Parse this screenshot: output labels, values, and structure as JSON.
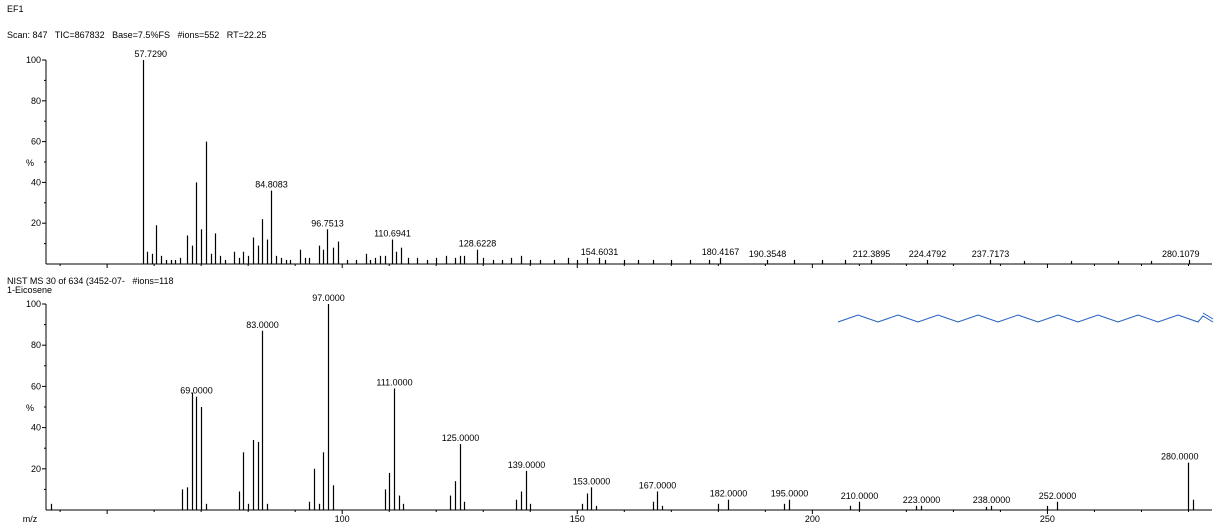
{
  "header": {
    "title": "EF1",
    "scan_info": "Scan: 847   TIC=867832   Base=7.5%FS   #ions=552   RT=22.25"
  },
  "library": {
    "info": "NIST MS 30 of 634 (3452-07-   #ions=118",
    "compound": "1-Eicosene"
  },
  "colors": {
    "axis": "#000000",
    "bars": "#000000",
    "structure": "#1f5fbf"
  },
  "chart_data": [
    {
      "type": "bar",
      "name": "measured",
      "xlim": [
        37,
        285
      ],
      "ylim": [
        0,
        100
      ],
      "y_ticks": [
        "20",
        "40",
        "60",
        "80",
        "100"
      ],
      "y_unit": "%",
      "peaks": [
        {
          "x": 57.73,
          "y": 100,
          "label": "57.7290"
        },
        {
          "x": 58.5,
          "y": 6
        },
        {
          "x": 59.5,
          "y": 5
        },
        {
          "x": 60.5,
          "y": 19
        },
        {
          "x": 61.5,
          "y": 4
        },
        {
          "x": 62.5,
          "y": 2
        },
        {
          "x": 63.5,
          "y": 2
        },
        {
          "x": 64.5,
          "y": 2
        },
        {
          "x": 65.5,
          "y": 3
        },
        {
          "x": 67,
          "y": 14
        },
        {
          "x": 68,
          "y": 9
        },
        {
          "x": 69,
          "y": 40
        },
        {
          "x": 70,
          "y": 17
        },
        {
          "x": 71,
          "y": 60
        },
        {
          "x": 72,
          "y": 5
        },
        {
          "x": 73,
          "y": 15
        },
        {
          "x": 74,
          "y": 4
        },
        {
          "x": 75,
          "y": 2
        },
        {
          "x": 77,
          "y": 6
        },
        {
          "x": 78,
          "y": 3
        },
        {
          "x": 79,
          "y": 6
        },
        {
          "x": 80,
          "y": 4
        },
        {
          "x": 81,
          "y": 13
        },
        {
          "x": 82,
          "y": 9
        },
        {
          "x": 83,
          "y": 22
        },
        {
          "x": 84,
          "y": 12
        },
        {
          "x": 84.81,
          "y": 36,
          "label": "84.8083"
        },
        {
          "x": 86,
          "y": 4
        },
        {
          "x": 87,
          "y": 3
        },
        {
          "x": 88,
          "y": 2
        },
        {
          "x": 89,
          "y": 2
        },
        {
          "x": 91,
          "y": 7
        },
        {
          "x": 92,
          "y": 3
        },
        {
          "x": 93,
          "y": 3
        },
        {
          "x": 95,
          "y": 9
        },
        {
          "x": 96,
          "y": 7
        },
        {
          "x": 96.75,
          "y": 17,
          "label": "96.7513"
        },
        {
          "x": 98,
          "y": 8
        },
        {
          "x": 99,
          "y": 11
        },
        {
          "x": 101,
          "y": 2
        },
        {
          "x": 103,
          "y": 2
        },
        {
          "x": 105,
          "y": 5
        },
        {
          "x": 106,
          "y": 2
        },
        {
          "x": 107,
          "y": 3
        },
        {
          "x": 108,
          "y": 4
        },
        {
          "x": 109,
          "y": 4
        },
        {
          "x": 110.69,
          "y": 12,
          "label": "110.6941"
        },
        {
          "x": 111.5,
          "y": 6
        },
        {
          "x": 112.5,
          "y": 8
        },
        {
          "x": 114,
          "y": 3
        },
        {
          "x": 116,
          "y": 3
        },
        {
          "x": 118,
          "y": 2
        },
        {
          "x": 120,
          "y": 3
        },
        {
          "x": 122,
          "y": 4
        },
        {
          "x": 124,
          "y": 3
        },
        {
          "x": 125,
          "y": 4
        },
        {
          "x": 126,
          "y": 4
        },
        {
          "x": 128.62,
          "y": 7,
          "label": "128.6228"
        },
        {
          "x": 130,
          "y": 3
        },
        {
          "x": 132,
          "y": 2
        },
        {
          "x": 134,
          "y": 2
        },
        {
          "x": 136,
          "y": 3
        },
        {
          "x": 138,
          "y": 4
        },
        {
          "x": 140,
          "y": 2
        },
        {
          "x": 142,
          "y": 2
        },
        {
          "x": 145,
          "y": 2
        },
        {
          "x": 148,
          "y": 3
        },
        {
          "x": 150,
          "y": 2
        },
        {
          "x": 152,
          "y": 3
        },
        {
          "x": 154.6,
          "y": 3,
          "label": "154.6031"
        },
        {
          "x": 156,
          "y": 2
        },
        {
          "x": 160,
          "y": 2
        },
        {
          "x": 163,
          "y": 2
        },
        {
          "x": 166,
          "y": 2
        },
        {
          "x": 170,
          "y": 2
        },
        {
          "x": 174,
          "y": 2
        },
        {
          "x": 178,
          "y": 2
        },
        {
          "x": 180.42,
          "y": 3,
          "label": "180.4167"
        },
        {
          "x": 190.35,
          "y": 2,
          "label": "190.3548"
        },
        {
          "x": 196,
          "y": 2
        },
        {
          "x": 202,
          "y": 2
        },
        {
          "x": 207,
          "y": 2
        },
        {
          "x": 212.39,
          "y": 2,
          "label": "212.3895"
        },
        {
          "x": 224.48,
          "y": 2,
          "label": "224.4792"
        },
        {
          "x": 237.72,
          "y": 2,
          "label": "237.7173"
        },
        {
          "x": 245,
          "y": 1.5
        },
        {
          "x": 255,
          "y": 1.5
        },
        {
          "x": 265,
          "y": 1.5
        },
        {
          "x": 272,
          "y": 1.5
        },
        {
          "x": 280.11,
          "y": 2,
          "label": "280.1079"
        }
      ]
    },
    {
      "type": "bar",
      "name": "library",
      "xlim": [
        37,
        285
      ],
      "ylim": [
        0,
        100
      ],
      "y_ticks": [
        "20",
        "40",
        "60",
        "80",
        "100"
      ],
      "y_unit": "%",
      "xlabel": "m/z",
      "x_ticks": [
        "100",
        "150",
        "200",
        "250"
      ],
      "peaks": [
        {
          "x": 38,
          "y": 3
        },
        {
          "x": 66,
          "y": 10
        },
        {
          "x": 67,
          "y": 11
        },
        {
          "x": 68,
          "y": 57
        },
        {
          "x": 69,
          "y": 55,
          "label": "69.0000"
        },
        {
          "x": 70,
          "y": 50
        },
        {
          "x": 71,
          "y": 3
        },
        {
          "x": 78,
          "y": 9
        },
        {
          "x": 79,
          "y": 28
        },
        {
          "x": 80,
          "y": 3
        },
        {
          "x": 81,
          "y": 34
        },
        {
          "x": 82,
          "y": 33
        },
        {
          "x": 83,
          "y": 87,
          "label": "83.0000"
        },
        {
          "x": 84,
          "y": 3
        },
        {
          "x": 93,
          "y": 4
        },
        {
          "x": 94,
          "y": 20
        },
        {
          "x": 95,
          "y": 3
        },
        {
          "x": 96,
          "y": 28
        },
        {
          "x": 97,
          "y": 100,
          "label": "97.0000"
        },
        {
          "x": 98,
          "y": 12
        },
        {
          "x": 109,
          "y": 10
        },
        {
          "x": 110,
          "y": 18
        },
        {
          "x": 111,
          "y": 59,
          "label": "111.0000"
        },
        {
          "x": 112,
          "y": 7
        },
        {
          "x": 113,
          "y": 3
        },
        {
          "x": 123,
          "y": 7
        },
        {
          "x": 124,
          "y": 14
        },
        {
          "x": 125,
          "y": 32,
          "label": "125.0000"
        },
        {
          "x": 126,
          "y": 4
        },
        {
          "x": 137,
          "y": 5
        },
        {
          "x": 138,
          "y": 9
        },
        {
          "x": 139,
          "y": 19,
          "label": "139.0000"
        },
        {
          "x": 140,
          "y": 3
        },
        {
          "x": 151,
          "y": 3
        },
        {
          "x": 152,
          "y": 8
        },
        {
          "x": 153,
          "y": 11,
          "label": "153.0000"
        },
        {
          "x": 154,
          "y": 2
        },
        {
          "x": 166,
          "y": 4
        },
        {
          "x": 167,
          "y": 9,
          "label": "167.0000"
        },
        {
          "x": 168,
          "y": 2
        },
        {
          "x": 180,
          "y": 3
        },
        {
          "x": 182,
          "y": 5,
          "label": "182.0000"
        },
        {
          "x": 194,
          "y": 3
        },
        {
          "x": 195,
          "y": 5,
          "label": "195.0000"
        },
        {
          "x": 208,
          "y": 2
        },
        {
          "x": 210,
          "y": 4,
          "label": "210.0000"
        },
        {
          "x": 222,
          "y": 2
        },
        {
          "x": 223,
          "y": 2,
          "label": "223.0000"
        },
        {
          "x": 237,
          "y": 1.5
        },
        {
          "x": 238,
          "y": 2,
          "label": "238.0000"
        },
        {
          "x": 250,
          "y": 2
        },
        {
          "x": 252,
          "y": 4,
          "label": "252.0000"
        },
        {
          "x": 280,
          "y": 23,
          "label": "280.0000"
        },
        {
          "x": 281,
          "y": 5
        }
      ]
    }
  ]
}
